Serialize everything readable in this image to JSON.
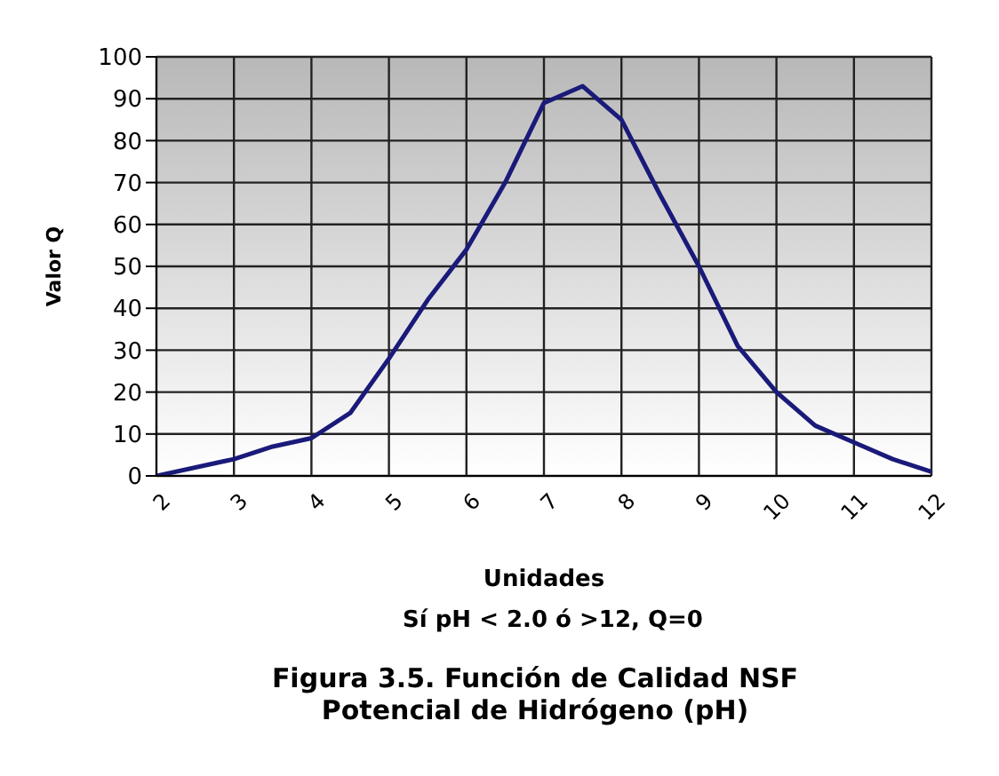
{
  "chart_data": {
    "type": "line",
    "title": "Figura 3.5. Función de Calidad NSF\nPotencial de Hidrógeno (pH)",
    "xlabel": "Unidades",
    "ylabel": "Valor Q",
    "annotations": [
      "Sí pH < 2.0 ó >12, Q=0"
    ],
    "x": [
      2,
      3,
      3.5,
      4,
      4.5,
      5,
      5.5,
      6,
      6.5,
      7,
      7.5,
      8,
      8.5,
      9,
      9.5,
      10,
      10.5,
      11,
      11.5,
      12
    ],
    "series": [
      {
        "color": "#1a1a7a",
        "values": [
          0,
          4,
          7,
          9,
          15,
          28,
          42,
          54,
          70,
          89,
          93,
          85,
          67,
          50,
          31,
          20,
          12,
          8,
          4,
          1
        ]
      }
    ],
    "xlim": [
      2,
      12
    ],
    "xticks": [
      2,
      3,
      4,
      5,
      6,
      7,
      8,
      9,
      10,
      11,
      12
    ],
    "ylim": [
      0,
      100
    ],
    "yticks": [
      0,
      10,
      20,
      30,
      40,
      50,
      60,
      70,
      80,
      90,
      100
    ],
    "grid": true,
    "legend": false,
    "marker": "none",
    "line_style": "solid"
  }
}
